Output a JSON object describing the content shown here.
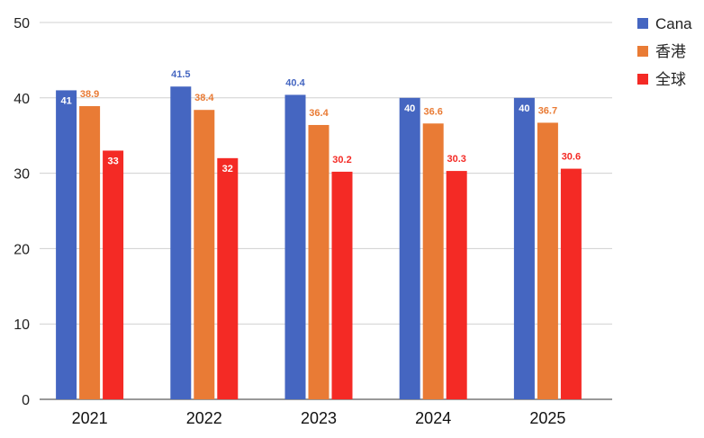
{
  "chart_data": {
    "type": "bar",
    "title": "",
    "xlabel": "",
    "ylabel": "",
    "categories": [
      "2021",
      "2022",
      "2023",
      "2024",
      "2025"
    ],
    "series": [
      {
        "name": "Cana",
        "color": "#4566c1",
        "values": [
          41,
          41.5,
          40.4,
          40,
          40
        ],
        "labels": [
          "41",
          "41.5",
          "40.4",
          "40",
          "40"
        ],
        "label_inside": [
          true,
          false,
          false,
          true,
          true
        ]
      },
      {
        "name": "香港",
        "color": "#e97b35",
        "values": [
          38.9,
          38.4,
          36.4,
          36.6,
          36.7
        ],
        "labels": [
          "38.9",
          "38.4",
          "36.4",
          "36.6",
          "36.7"
        ],
        "label_inside": [
          false,
          false,
          false,
          false,
          false
        ]
      },
      {
        "name": "全球",
        "color": "#f42a25",
        "values": [
          33,
          32,
          30.2,
          30.3,
          30.6
        ],
        "labels": [
          "33",
          "32",
          "30.2",
          "30.3",
          "30.6"
        ],
        "label_inside": [
          true,
          true,
          false,
          false,
          false
        ]
      }
    ],
    "ylim": [
      0,
      50
    ],
    "yticks": [
      0,
      10,
      20,
      30,
      40,
      50
    ],
    "grid": true,
    "legend_position": "top-right"
  }
}
